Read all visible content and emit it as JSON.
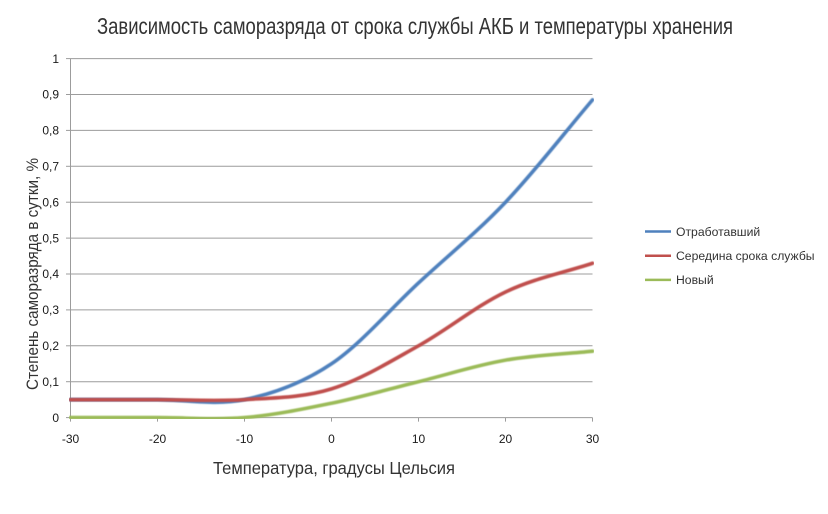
{
  "chart_data": {
    "type": "line",
    "title": "Зависимость саморазряда от срока службы АКБ и температуры хранения",
    "xlabel": "Температура, градусы Цельсия",
    "ylabel": "Степень саморазряда в сутки, %",
    "x": [
      -30,
      -20,
      -10,
      0,
      10,
      20,
      30
    ],
    "x_tick_labels": [
      "-30",
      "-20",
      "-10",
      "0",
      "10",
      "20",
      "30"
    ],
    "y_tick_labels": [
      "0",
      "0,1",
      "0,2",
      "0,3",
      "0,4",
      "0,5",
      "0,6",
      "0,7",
      "0,8",
      "0,9",
      "1"
    ],
    "xlim": [
      -30,
      30
    ],
    "ylim": [
      0,
      1
    ],
    "y_tick_step": 0.1,
    "grid": true,
    "smooth_lines": true,
    "legend_position": "right",
    "series": [
      {
        "name": "Отработавший",
        "color": "#4F81BD",
        "values": [
          0.05,
          0.05,
          0.05,
          0.15,
          0.375,
          0.6,
          0.885
        ]
      },
      {
        "name": "Середина срока службы",
        "color": "#C0504D",
        "values": [
          0.05,
          0.05,
          0.05,
          0.08,
          0.2,
          0.35,
          0.43
        ]
      },
      {
        "name": "Новый",
        "color": "#9BBB59",
        "values": [
          0,
          0,
          0,
          0.04,
          0.1,
          0.16,
          0.185
        ]
      }
    ],
    "colors": {
      "background": "#FFFFFF",
      "gridline": "#9C9C9C",
      "axis": "#9C9C9C",
      "title_text": "#333333",
      "axis_title_text": "#333333",
      "tick_text": "#1A1A1A",
      "legend_text": "#333333"
    }
  }
}
